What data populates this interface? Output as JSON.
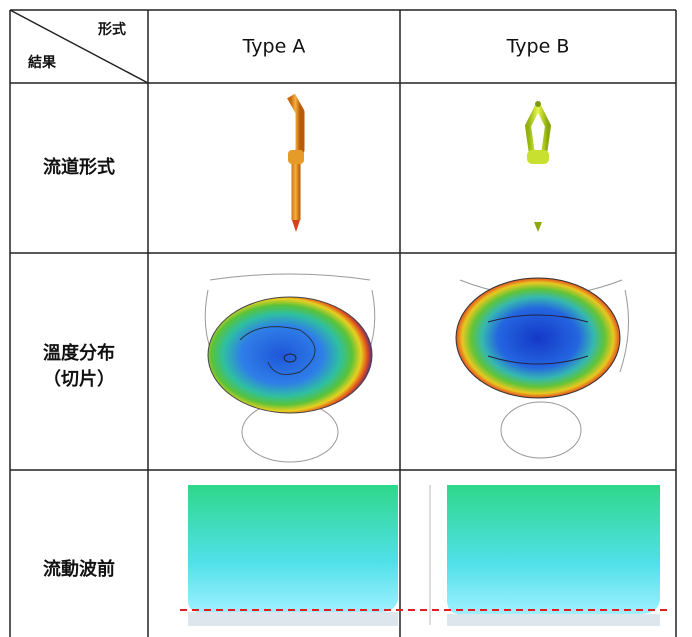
{
  "table": {
    "header": {
      "row_header": "結果",
      "col_header": "形式",
      "columns": [
        "Type A",
        "Type B"
      ]
    },
    "rows": [
      [
        "流道形式"
      ],
      [
        "溫度分布",
        "（切片）"
      ],
      [
        "流動波前"
      ]
    ]
  }
}
